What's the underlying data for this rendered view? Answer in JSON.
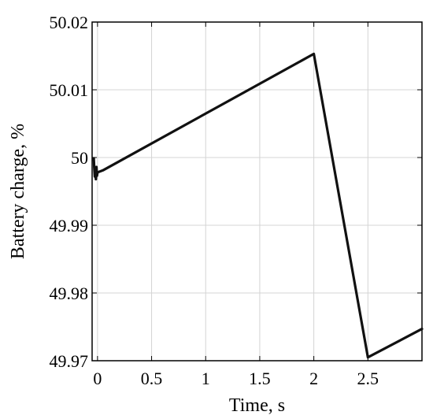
{
  "chart_data": {
    "type": "line",
    "title": "",
    "xlabel": "Time, s",
    "ylabel": "Battery charge, %",
    "xlim": [
      -0.05,
      3.0
    ],
    "ylim": [
      49.97,
      50.02
    ],
    "x_ticks": [
      0,
      0.5,
      1,
      1.5,
      2,
      2.5
    ],
    "x_tick_labels": [
      "0",
      "0.5",
      "1",
      "1.5",
      "2",
      "2.5"
    ],
    "y_ticks": [
      49.97,
      49.98,
      49.99,
      50,
      50.01,
      50.02
    ],
    "y_tick_labels": [
      "49.97",
      "49.98",
      "49.99",
      "50",
      "50.01",
      "50.02"
    ],
    "grid": true,
    "legend": "none",
    "series": [
      {
        "color": "#111111",
        "x": [
          -0.04,
          -0.035,
          -0.03,
          -0.025,
          -0.02,
          -0.015,
          -0.01,
          -0.005,
          0.0,
          0.05,
          2.0,
          2.5,
          3.0
        ],
        "y": [
          49.9997,
          49.9999,
          49.9985,
          49.9972,
          49.9981,
          49.9968,
          49.9986,
          49.9973,
          49.9978,
          49.9981,
          50.0153,
          49.9705,
          49.9747
        ]
      }
    ]
  }
}
